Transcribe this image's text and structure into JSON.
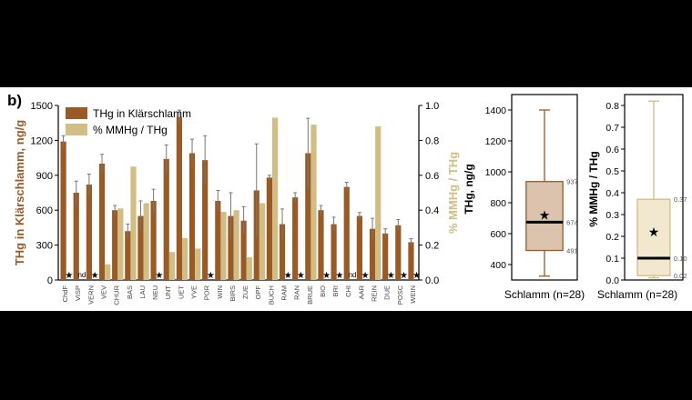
{
  "panel_label": "b)",
  "colors": {
    "thg": "#9a5a26",
    "mmhg": "#d2bd84",
    "thg_box_fill": "#dcc3ad",
    "mmhg_box_fill": "#f1e8cf",
    "frame": "#000000"
  },
  "chart_data": [
    {
      "type": "bar",
      "title": "",
      "legend": [
        "THg in Klärschlamm",
        "% MMHg / THg"
      ],
      "legend_position": "top-left",
      "ylabel": "THg in Klärschlamm, ng/g",
      "ylabel_right": "% MMHg / THg",
      "ylim": [
        0,
        1500
      ],
      "ylim_right": [
        0,
        1.0
      ],
      "yticks": [
        "0",
        "300",
        "600",
        "900",
        "1200",
        "1500"
      ],
      "yticks_right": [
        "0.0",
        "0.2",
        "0.4",
        "0.6",
        "0.8",
        "1.0"
      ],
      "categories": [
        "ChdF",
        "VISP",
        "VERN",
        "VEV",
        "CHUR",
        "BAS",
        "LAU",
        "NEU",
        "UNT",
        "UET",
        "YVE",
        "POR",
        "WIN",
        "BIRS",
        "ZUE",
        "OPF",
        "BUCH",
        "RAM",
        "RAN",
        "BRUE",
        "BIO",
        "BRI",
        "CHI",
        "AAR",
        "REIN",
        "DUE",
        "POSC",
        "WEIN"
      ],
      "series": [
        {
          "name": "THg in Klärschlamm",
          "axis": "left",
          "values": [
            1190,
            750,
            820,
            1000,
            600,
            420,
            550,
            680,
            1040,
            1400,
            1090,
            1030,
            680,
            550,
            510,
            770,
            880,
            480,
            710,
            1090,
            600,
            480,
            800,
            550,
            440,
            400,
            470,
            325
          ],
          "error": [
            50,
            100,
            90,
            80,
            40,
            60,
            130,
            100,
            120,
            60,
            120,
            210,
            90,
            200,
            120,
            400,
            20,
            130,
            40,
            300,
            40,
            60,
            40,
            30,
            90,
            40,
            50,
            30
          ]
        },
        {
          "name": "% MMHg / THg",
          "axis": "right",
          "values": [
            null,
            null,
            null,
            0.09,
            0.41,
            0.65,
            0.44,
            null,
            0.16,
            0.24,
            0.18,
            null,
            0.39,
            0.4,
            0.13,
            0.44,
            0.93,
            null,
            null,
            0.89,
            null,
            null,
            null,
            null,
            0.88,
            null,
            null,
            null
          ]
        }
      ],
      "markers": {
        "star_categories": [
          "ChdF",
          "VERN",
          "NEU",
          "POR",
          "RAM",
          "RAN",
          "BIO",
          "BRI",
          "AAR",
          "DUE",
          "POSC",
          "WEIN"
        ],
        "nd_categories": [
          "VISP",
          "CHI"
        ],
        "star_symbol": "★",
        "nd_text": "nd"
      }
    },
    {
      "type": "box",
      "xlabel": "Schlamm (n=28)",
      "ylabel": "THg, ng/g",
      "ylim": [
        300,
        1500
      ],
      "yticks": [
        "400",
        "600",
        "800",
        "1000",
        "1200",
        "1400"
      ],
      "whisker_low": 325,
      "q1": 491,
      "median": 674,
      "q3": 937,
      "whisker_high": 1400,
      "mean": 720,
      "annotations": [
        "937",
        "674",
        "491"
      ]
    },
    {
      "type": "box",
      "xlabel": "Schlamm (n=28)",
      "ylabel": "% MMHg / THg",
      "ylim": [
        0,
        0.85
      ],
      "yticks": [
        "0.0",
        "0.1",
        "0.2",
        "0.3",
        "0.4",
        "0.5",
        "0.6",
        "0.7",
        "0.8"
      ],
      "whisker_low": 0.01,
      "q1": 0.02,
      "median": 0.1,
      "q3": 0.37,
      "whisker_high": 0.82,
      "mean": 0.22,
      "annotations": [
        "0.37",
        "0.10",
        "0.02"
      ]
    }
  ]
}
